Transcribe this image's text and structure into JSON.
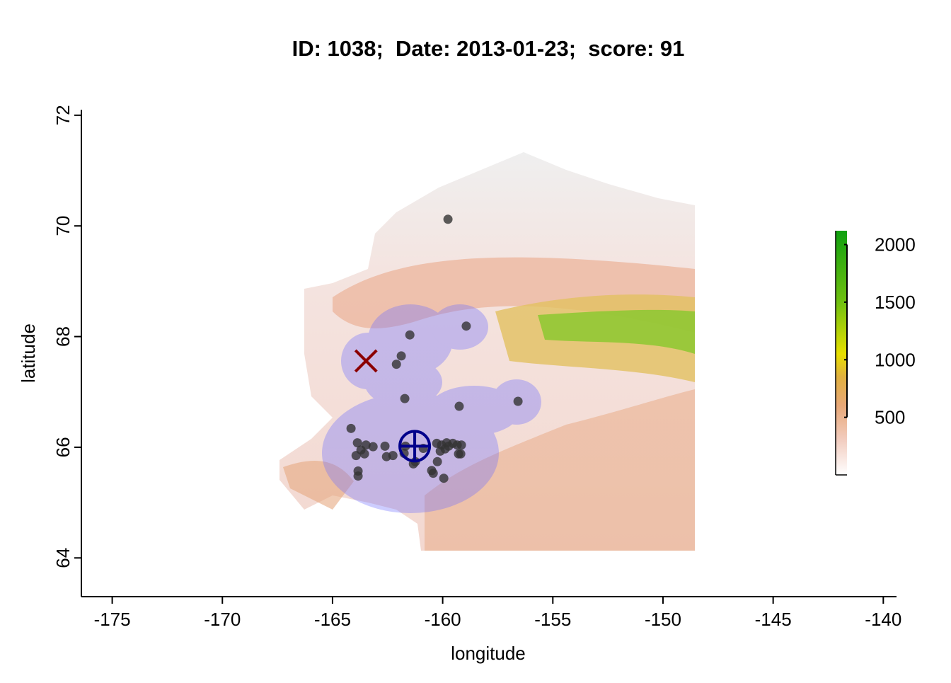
{
  "chart_data": {
    "type": "scatter",
    "title": "ID: 1038;  Date: 2013-01-23;  score: 91",
    "x_label": "longitude",
    "y_label": "latitude",
    "xlim": [
      -176.4,
      -139.4
    ],
    "ylim": [
      63.3,
      72.1
    ],
    "xticks": [
      -175,
      -170,
      -165,
      -160,
      -155,
      -150,
      -145,
      -140
    ],
    "yticks": [
      64,
      66,
      68,
      70,
      72
    ],
    "point_color": "#333333",
    "x": [
      -159.76,
      -158.93,
      -161.49,
      -161.88,
      -162.1,
      -161.72,
      -159.25,
      -156.58,
      -164.16,
      -163.87,
      -163.71,
      -163.48,
      -163.16,
      -162.62,
      -162.55,
      -162.26,
      -163.93,
      -163.55,
      -163.84,
      -163.84,
      -161.69,
      -161.24,
      -161.33,
      -160.88,
      -160.27,
      -160.05,
      -159.82,
      -159.73,
      -159.54,
      -159.34,
      -159.15,
      -160.11,
      -159.89,
      -159.18,
      -159.28,
      -160.43,
      -160.5,
      -160.24,
      -159.95,
      -161.75
    ],
    "y": [
      70.12,
      68.19,
      68.03,
      67.65,
      67.5,
      66.88,
      66.74,
      66.83,
      66.34,
      66.08,
      65.95,
      66.04,
      66.01,
      66.02,
      65.83,
      65.85,
      65.85,
      65.88,
      65.57,
      65.48,
      66.02,
      65.74,
      65.7,
      65.98,
      66.07,
      66.04,
      66.08,
      66.02,
      66.07,
      66.04,
      66.04,
      65.93,
      65.97,
      65.88,
      65.88,
      65.53,
      65.58,
      65.74,
      65.44,
      65.89
    ],
    "markers": [
      {
        "shape": "cross",
        "x": -163.48,
        "y": 67.56,
        "color": "#8b0000"
      },
      {
        "shape": "circled-plus",
        "x": -161.27,
        "y": 66.02,
        "color": "#00008b"
      }
    ],
    "colorbar": {
      "lim": [
        0,
        2120
      ],
      "ticks": [
        500,
        1000,
        1500,
        2000
      ],
      "stops": [
        {
          "value": 0,
          "color": "#ffffff"
        },
        {
          "value": 300,
          "color": "#f2cdc0"
        },
        {
          "value": 600,
          "color": "#e8a878"
        },
        {
          "value": 850,
          "color": "#e0b040"
        },
        {
          "value": 1050,
          "color": "#e8e000"
        },
        {
          "value": 1500,
          "color": "#70c010"
        },
        {
          "value": 2120,
          "color": "#10a010"
        }
      ]
    }
  }
}
